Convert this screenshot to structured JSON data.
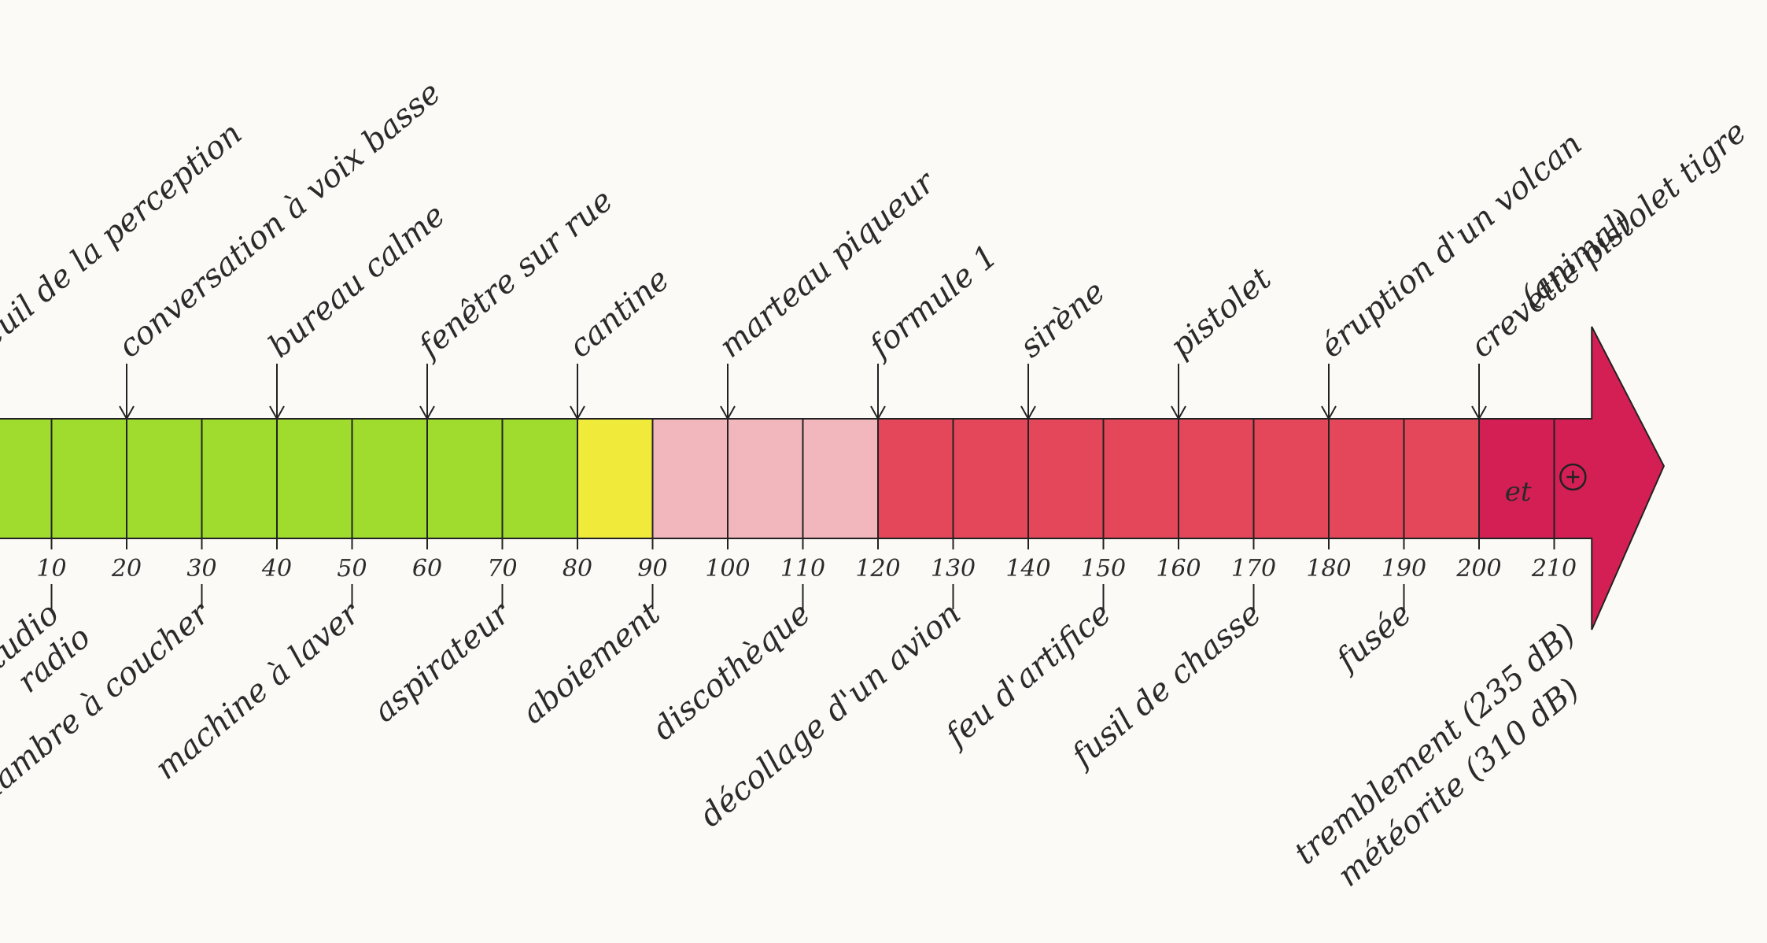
{
  "scale": {
    "min": 0,
    "max": 210,
    "step": 10,
    "tick_labels": [
      "10",
      "20",
      "30",
      "40",
      "50",
      "60",
      "70",
      "80",
      "90",
      "100",
      "110",
      "120",
      "130",
      "140",
      "150",
      "160",
      "170",
      "180",
      "190",
      "200",
      "210"
    ],
    "end_note": "et"
  },
  "above_labels": [
    {
      "text": "seuil de la perception",
      "value": 0
    },
    {
      "text": "conversation à voix basse",
      "value": 20
    },
    {
      "text": "bureau calme",
      "value": 40
    },
    {
      "text": "fenêtre sur rue",
      "value": 60
    },
    {
      "text": "cantine",
      "value": 80
    },
    {
      "text": "marteau piqueur",
      "value": 100
    },
    {
      "text": "formule 1",
      "value": 120
    },
    {
      "text": "sirène",
      "value": 140
    },
    {
      "text": "pistolet",
      "value": 160
    },
    {
      "text": "éruption d'un volcan",
      "value": 180
    },
    {
      "text": "crevette pistolet tigre",
      "value": 200
    },
    {
      "text": "(animal)",
      "value": 200
    }
  ],
  "below_labels": [
    {
      "text": "studio",
      "value": 10
    },
    {
      "text": "radio",
      "value": 10
    },
    {
      "text": "chambre à coucher",
      "value": 30
    },
    {
      "text": "machine à laver",
      "value": 50
    },
    {
      "text": "aspirateur",
      "value": 70
    },
    {
      "text": "aboiement",
      "value": 90
    },
    {
      "text": "discothèque",
      "value": 110
    },
    {
      "text": "décollage d'un avion",
      "value": 130
    },
    {
      "text": "feu d'artifice",
      "value": 150
    },
    {
      "text": "fusil de chasse",
      "value": 170
    },
    {
      "text": "fusée",
      "value": 190
    },
    {
      "text": "tremblement (235 dB)",
      "value": 235
    },
    {
      "text": "météorite (310 dB)",
      "value": 310
    }
  ],
  "zone_colors": {
    "quiet": "#9fdc2e",
    "moderate": "#f0ea3a",
    "loud": "#f2b6bd",
    "very_loud": "#e4475a",
    "extreme": "#d41f55"
  }
}
